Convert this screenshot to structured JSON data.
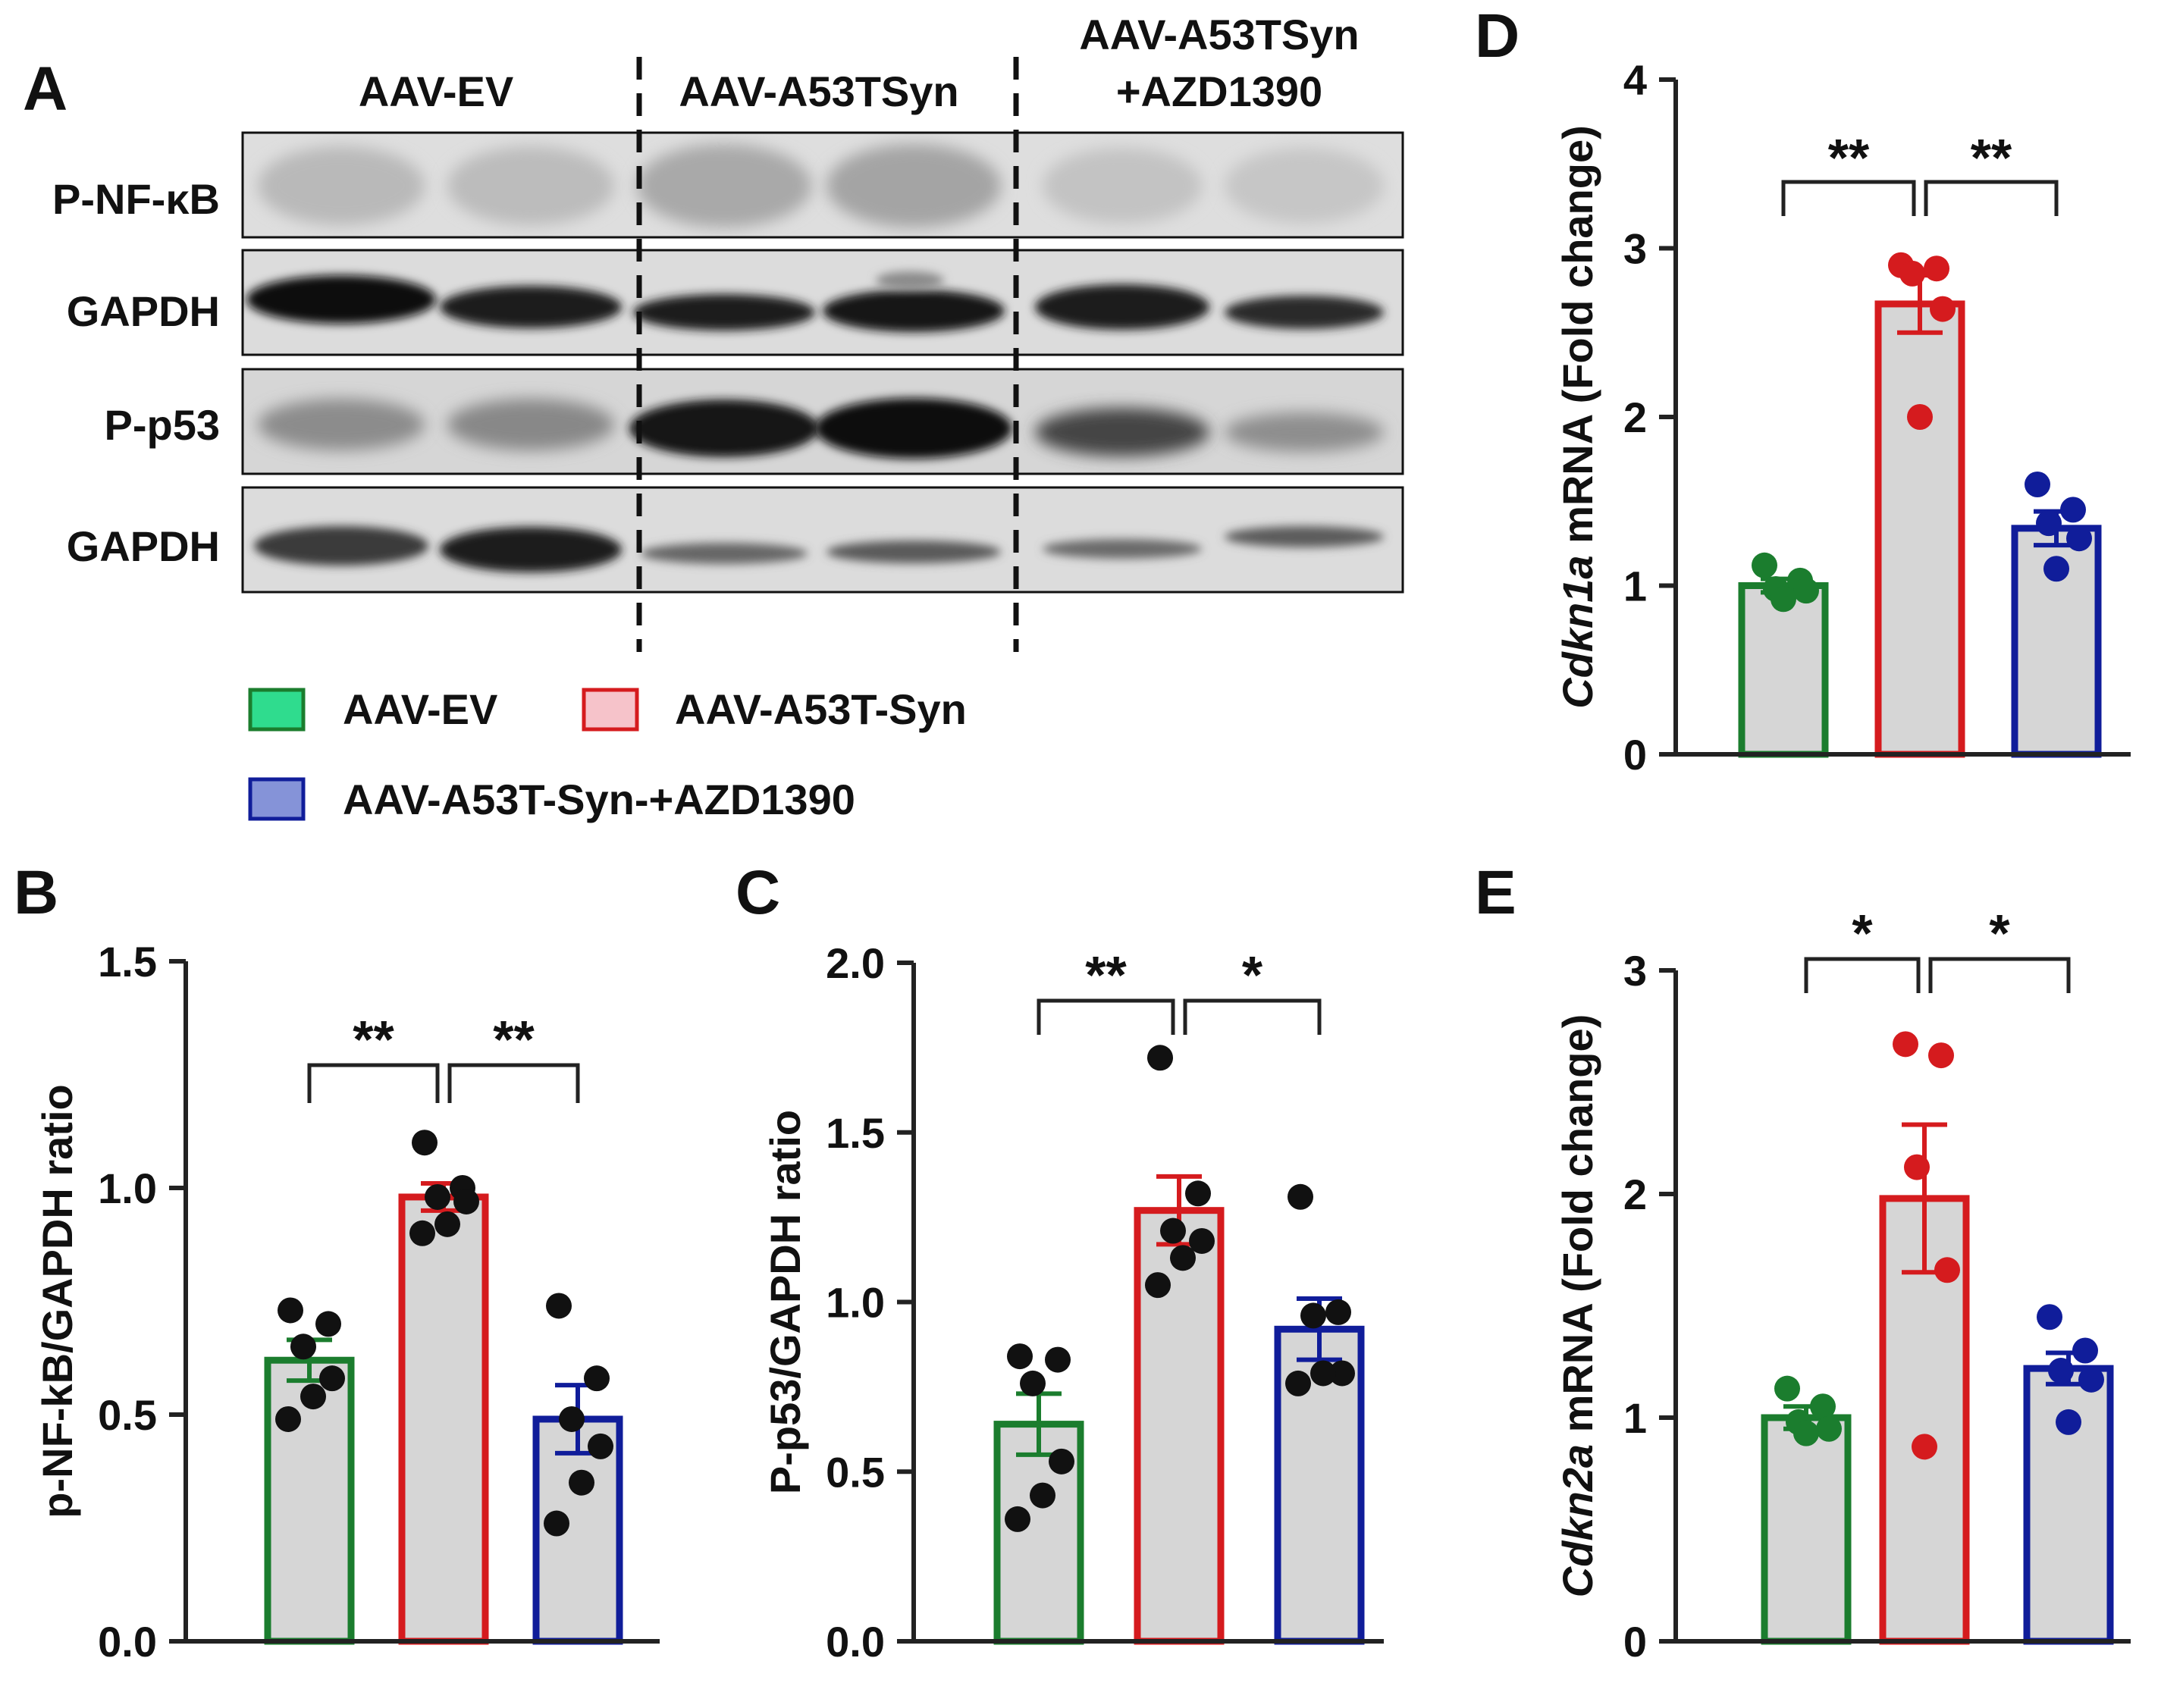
{
  "figure": {
    "panel_labels": {
      "A": "A",
      "B": "B",
      "C": "C",
      "D": "D",
      "E": "E"
    }
  },
  "colors": {
    "ev": "#1b7d2e",
    "syn": "#d51b1e",
    "azd": "#101d9a",
    "bar_fill": "#d6d6d6",
    "axis": "#222222",
    "ev_legend_fill": "#2fdc8e",
    "syn_legend_fill": "#f6c3ca",
    "azd_legend_fill": "#8593d8"
  },
  "blot": {
    "groups": [
      "AAV-EV",
      "AAV-A53TSyn",
      "AAV-A53TSyn",
      "+AZD1390"
    ],
    "rows": [
      "P-NF-κB",
      "GAPDH",
      "P-p53",
      "GAPDH"
    ]
  },
  "legend": {
    "items": [
      {
        "label": "AAV-EV",
        "color_key": "ev"
      },
      {
        "label": "AAV-A53T-Syn",
        "color_key": "syn"
      },
      {
        "label": "AAV-A53T-Syn-+AZD1390",
        "color_key": "azd"
      }
    ]
  },
  "chart_data": [
    {
      "panel": "B",
      "type": "bar",
      "ylabel": "p-NF-kB/GAPDH ratio",
      "ylim": [
        0,
        1.5
      ],
      "yticks": [
        "0.0",
        "0.5",
        "1.0",
        "1.5"
      ],
      "tick_values": [
        0,
        0.5,
        1.0,
        1.5
      ],
      "categories": [
        "AAV-EV",
        "AAV-A53T-Syn",
        "AAV-A53T-Syn-+AZD1390"
      ],
      "values": [
        0.62,
        0.98,
        0.49
      ],
      "sem": [
        0.045,
        0.03,
        0.075
      ],
      "points": [
        [
          0.73,
          0.7,
          0.65,
          0.58,
          0.54,
          0.49
        ],
        [
          1.1,
          1.0,
          0.98,
          0.97,
          0.92,
          0.9
        ],
        [
          0.74,
          0.58,
          0.49,
          0.43,
          0.35,
          0.26
        ]
      ],
      "point_color": "dark",
      "significance": [
        {
          "label": "**"
        },
        {
          "label": "**"
        }
      ]
    },
    {
      "panel": "C",
      "type": "bar",
      "ylabel": "P-p53/GAPDH ratio",
      "ylim": [
        0,
        2.0
      ],
      "yticks": [
        "0.0",
        "0.5",
        "1.0",
        "1.5",
        "2.0"
      ],
      "tick_values": [
        0,
        0.5,
        1.0,
        1.5,
        2.0
      ],
      "categories": [
        "AAV-EV",
        "AAV-A53T-Syn",
        "AAV-A53T-Syn-+AZD1390"
      ],
      "values": [
        0.64,
        1.27,
        0.92
      ],
      "sem": [
        0.09,
        0.1,
        0.09
      ],
      "points": [
        [
          0.84,
          0.83,
          0.76,
          0.53,
          0.43,
          0.36
        ],
        [
          1.72,
          1.32,
          1.21,
          1.18,
          1.13,
          1.05
        ],
        [
          1.31,
          0.97,
          0.96,
          0.79,
          0.79,
          0.76
        ]
      ],
      "point_color": "dark",
      "significance": [
        {
          "label": "**"
        },
        {
          "label": "*"
        }
      ]
    },
    {
      "panel": "D",
      "type": "bar",
      "ylabel_italic": "Cdkn1a",
      "ylabel_rest": " mRNA (Fold change)",
      "ylim": [
        0,
        4
      ],
      "yticks": [
        "0",
        "1",
        "2",
        "3",
        "4"
      ],
      "tick_values": [
        0,
        1,
        2,
        3,
        4
      ],
      "categories": [
        "AAV-EV",
        "AAV-A53T-Syn",
        "AAV-A53T-Syn-+AZD1390"
      ],
      "values": [
        1.0,
        2.67,
        1.34
      ],
      "sem": [
        0.04,
        0.17,
        0.1
      ],
      "points": [
        [
          1.12,
          1.03,
          0.98,
          0.97,
          0.92
        ],
        [
          2.9,
          2.88,
          2.85,
          2.64,
          2.0
        ],
        [
          1.6,
          1.45,
          1.37,
          1.28,
          1.1
        ]
      ],
      "point_color": "group",
      "significance": [
        {
          "label": "**"
        },
        {
          "label": "**"
        }
      ]
    },
    {
      "panel": "E",
      "type": "bar",
      "ylabel_italic": "Cdkn2a",
      "ylabel_rest": " mRNA (Fold change)",
      "ylim": [
        0,
        3
      ],
      "yticks": [
        "0",
        "1",
        "2",
        "3"
      ],
      "tick_values": [
        0,
        1,
        2,
        3
      ],
      "categories": [
        "AAV-EV",
        "AAV-A53T-Syn",
        "AAV-A53T-Syn-+AZD1390"
      ],
      "values": [
        1.0,
        1.98,
        1.22
      ],
      "sem": [
        0.05,
        0.33,
        0.07
      ],
      "points": [
        [
          1.13,
          1.05,
          0.98,
          0.95,
          0.93
        ],
        [
          2.67,
          2.62,
          2.12,
          1.66,
          0.87
        ],
        [
          1.45,
          1.3,
          1.21,
          1.17,
          0.98
        ]
      ],
      "point_color": "group",
      "significance": [
        {
          "label": "*"
        },
        {
          "label": "*"
        }
      ]
    }
  ]
}
